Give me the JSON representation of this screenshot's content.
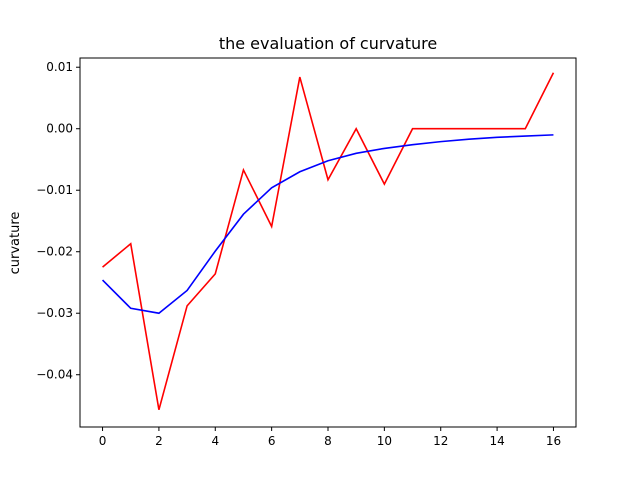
{
  "chart_data": {
    "type": "line",
    "title": "the evaluation of curvature",
    "xlabel": "",
    "ylabel": "curvature",
    "xlim": [
      -0.8,
      16.8
    ],
    "ylim": [
      -0.0485,
      0.0115
    ],
    "xticks": [
      0,
      2,
      4,
      6,
      8,
      10,
      12,
      14,
      16
    ],
    "xtick_labels": [
      "0",
      "2",
      "4",
      "6",
      "8",
      "10",
      "12",
      "14",
      "16"
    ],
    "yticks": [
      0.01,
      0.0,
      -0.01,
      -0.02,
      -0.03,
      -0.04
    ],
    "ytick_labels": [
      "0.01",
      "0.00",
      "−0.01",
      "−0.02",
      "−0.03",
      "−0.04"
    ],
    "grid": false,
    "legend": false,
    "x": [
      0,
      1,
      2,
      3,
      4,
      5,
      6,
      7,
      8,
      9,
      10,
      11,
      12,
      13,
      14,
      15,
      16
    ],
    "series": [
      {
        "color": "#ff0000",
        "values": [
          -0.0225,
          -0.0187,
          -0.0457,
          -0.0288,
          -0.0236,
          -0.0067,
          -0.0159,
          0.0084,
          -0.0083,
          0.0,
          -0.009,
          0.0,
          0.0,
          0.0,
          0.0,
          0.0,
          0.0091
        ]
      },
      {
        "color": "#0000ff",
        "values": [
          -0.0246,
          -0.0292,
          -0.03,
          -0.0263,
          -0.0199,
          -0.0139,
          -0.0096,
          -0.007,
          -0.0052,
          -0.004,
          -0.0032,
          -0.0026,
          -0.0021,
          -0.0017,
          -0.0014,
          -0.0012,
          -0.001
        ]
      }
    ]
  }
}
